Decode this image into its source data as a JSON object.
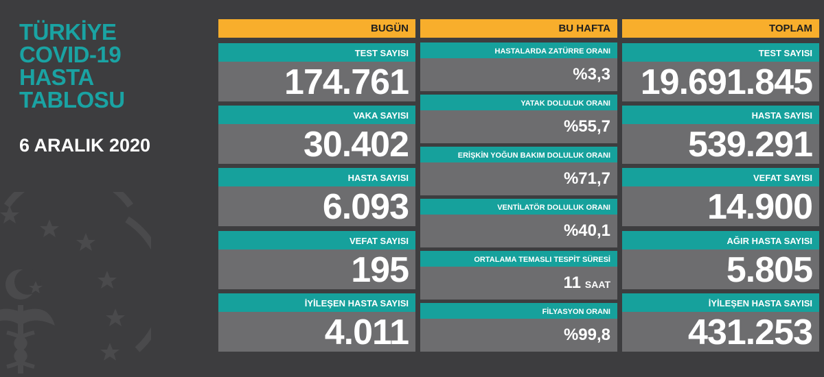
{
  "title_lines": [
    "TÜRKİYE",
    "COVID-19",
    "HASTA",
    "TABLOSU"
  ],
  "date": "6 ARALIK 2020",
  "colors": {
    "background": "#3d3d3f",
    "header": "#f8ae2c",
    "label": "#16a19c",
    "value": "#6d6d6f",
    "title": "#1aa3a3"
  },
  "today": {
    "header": "BUGÜN",
    "items": [
      {
        "label": "TEST SAYISI",
        "value": "174.761"
      },
      {
        "label": "VAKA SAYISI",
        "value": "30.402"
      },
      {
        "label": "HASTA SAYISI",
        "value": "6.093"
      },
      {
        "label": "VEFAT SAYISI",
        "value": "195"
      },
      {
        "label": "İYİLEŞEN HASTA SAYISI",
        "value": "4.011"
      }
    ]
  },
  "week": {
    "header": "BU HAFTA",
    "items": [
      {
        "label": "HASTALARDA ZATÜRRE ORANI",
        "value": "%3,3"
      },
      {
        "label": "YATAK DOLULUK ORANI",
        "value": "%55,7"
      },
      {
        "label": "ERİŞKİN YOĞUN BAKIM DOLULUK ORANI",
        "value": "%71,7"
      },
      {
        "label": "VENTİLATÖR DOLULUK ORANI",
        "value": "%40,1"
      },
      {
        "label": "ORTALAMA TEMASLI TESPİT SÜRESİ",
        "value": "11",
        "unit": "SAAT"
      },
      {
        "label": "FİLYASYON ORANI",
        "value": "%99,8"
      }
    ]
  },
  "total": {
    "header": "TOPLAM",
    "items": [
      {
        "label": "TEST SAYISI",
        "value": "19.691.845"
      },
      {
        "label": "HASTA SAYISI",
        "value": "539.291"
      },
      {
        "label": "VEFAT SAYISI",
        "value": "14.900"
      },
      {
        "label": "AĞIR HASTA SAYISI",
        "value": "5.805"
      },
      {
        "label": "İYİLEŞEN HASTA SAYISI",
        "value": "431.253"
      }
    ]
  }
}
